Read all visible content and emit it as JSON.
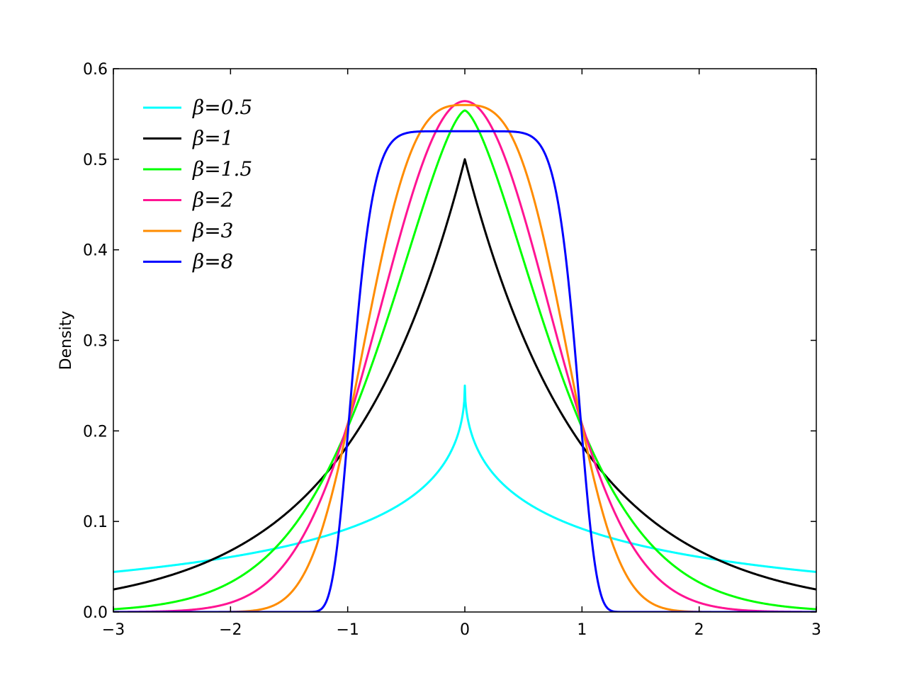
{
  "chart_data": {
    "type": "line",
    "title": "",
    "xlabel": "",
    "ylabel": "Density",
    "xlim": [
      -3,
      3
    ],
    "ylim": [
      0,
      0.6
    ],
    "xticks": [
      -3,
      -2,
      -1,
      0,
      1,
      2,
      3
    ],
    "xtick_labels": [
      "−3",
      "−2",
      "−1",
      "0",
      "1",
      "2",
      "3"
    ],
    "yticks": [
      0.0,
      0.1,
      0.2,
      0.3,
      0.4,
      0.5,
      0.6
    ],
    "ytick_labels": [
      "0.0",
      "0.1",
      "0.2",
      "0.3",
      "0.4",
      "0.5",
      "0.6"
    ],
    "grid": false,
    "legend_position": "top-left",
    "distribution": "generalized normal, location 0, scale 1",
    "series": [
      {
        "name": "β=0.5",
        "beta": 0.5,
        "color": "#00ffff"
      },
      {
        "name": "β=1",
        "beta": 1,
        "color": "#000000"
      },
      {
        "name": "β=1.5",
        "beta": 1.5,
        "color": "#00ff00"
      },
      {
        "name": "β=2",
        "beta": 2,
        "color": "#ff1493"
      },
      {
        "name": "β=3",
        "beta": 3,
        "color": "#ff8c00"
      },
      {
        "name": "β=8",
        "beta": 8,
        "color": "#0000ff"
      }
    ]
  }
}
